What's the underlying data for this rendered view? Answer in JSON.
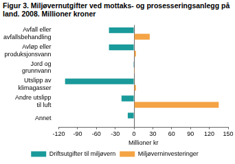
{
  "chart_data": {
    "type": "bar",
    "orientation": "horizontal",
    "title": "Figur 3. Miljøvernutgifter ved mottaks- og prosesseringsanlegg på land. 2008. Millioner kroner",
    "x_label": "Millioner kr",
    "categories": [
      "Avfall eller avfallsbehandling",
      "Avløp eller produksjonsvann",
      "Jord og grunnvann",
      "Utslipp av klimagasser",
      "Andre utslipp til luft",
      "Annet"
    ],
    "series": [
      {
        "name": "Driftsutgifter til miljøvern",
        "color": "#1a9a9a",
        "values": [
          -40,
          -40,
          -1,
          -110,
          -20,
          -10
        ]
      },
      {
        "name": "Miljøverninvesteringer",
        "color": "#f4a345",
        "values": [
          25,
          3,
          1,
          3,
          135,
          0
        ]
      }
    ],
    "xlim": [
      -120,
      150
    ],
    "xticks": [
      -120,
      -90,
      -60,
      -30,
      0,
      30,
      60,
      90,
      120,
      150
    ],
    "grid": false,
    "legend": "bottom"
  }
}
